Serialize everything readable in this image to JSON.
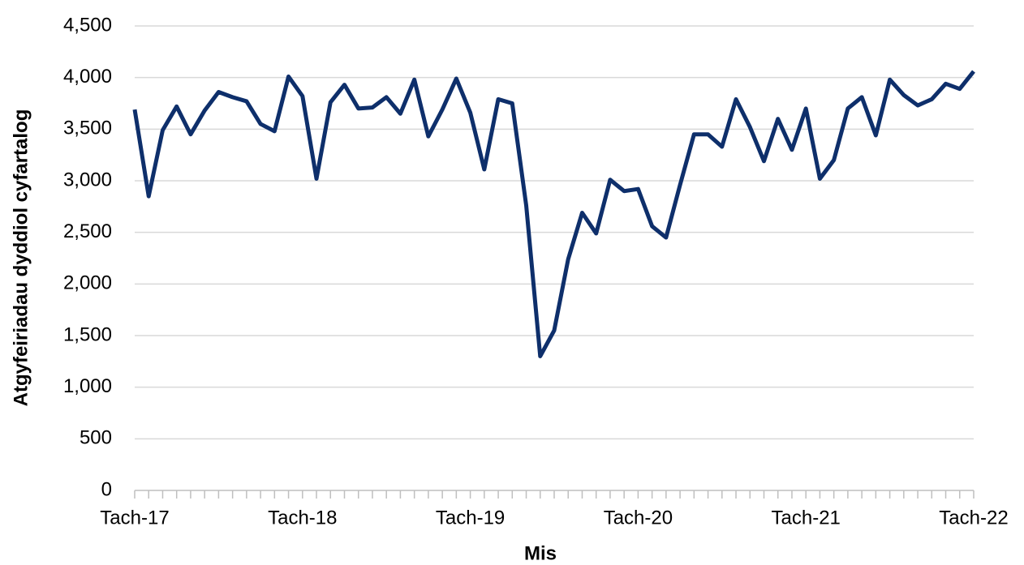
{
  "chart_data": {
    "type": "line",
    "y_label": "Atgyfeiriadau dyddiol cyfartalog",
    "x_label": "Mis",
    "categories": [
      "Tach-17",
      null,
      null,
      null,
      null,
      null,
      null,
      null,
      null,
      null,
      null,
      null,
      "Tach-18",
      null,
      null,
      null,
      null,
      null,
      null,
      null,
      null,
      null,
      null,
      null,
      "Tach-19",
      null,
      null,
      null,
      null,
      null,
      null,
      null,
      null,
      null,
      null,
      null,
      "Tach-20",
      null,
      null,
      null,
      null,
      null,
      null,
      null,
      null,
      null,
      null,
      null,
      "Tach-21",
      null,
      null,
      null,
      null,
      null,
      null,
      null,
      null,
      null,
      null,
      null,
      "Tach-22"
    ],
    "series": [
      {
        "color": "#0e2f6b",
        "values": [
          3690,
          2850,
          3490,
          3720,
          3450,
          3680,
          3860,
          3810,
          3770,
          3550,
          3480,
          4010,
          3820,
          3020,
          3760,
          3930,
          3700,
          3710,
          3810,
          3650,
          3980,
          3430,
          3690,
          3990,
          3660,
          3110,
          3790,
          3750,
          2760,
          1300,
          1550,
          2240,
          2690,
          2490,
          3010,
          2900,
          2920,
          2560,
          2450,
          2960,
          3450,
          3450,
          3330,
          3790,
          3520,
          3190,
          3600,
          3300,
          3700,
          3020,
          3200,
          3700,
          3810,
          3440,
          3980,
          3830,
          3730,
          3790,
          3940,
          3890,
          4060
        ]
      }
    ],
    "ylim": [
      0,
      4500
    ],
    "yticks": [
      0,
      500,
      {
        "value": 1000,
        "label": "1,000"
      },
      {
        "value": 1500,
        "label": "1,500"
      },
      {
        "value": 2000,
        "label": "2,000"
      },
      {
        "value": 2500,
        "label": "2,500"
      },
      {
        "value": 3000,
        "label": "3,000"
      },
      {
        "value": 3500,
        "label": "3,500"
      },
      {
        "value": 4000,
        "label": "4,000"
      },
      {
        "value": 4500,
        "label": "4,500"
      }
    ],
    "grid": true
  }
}
